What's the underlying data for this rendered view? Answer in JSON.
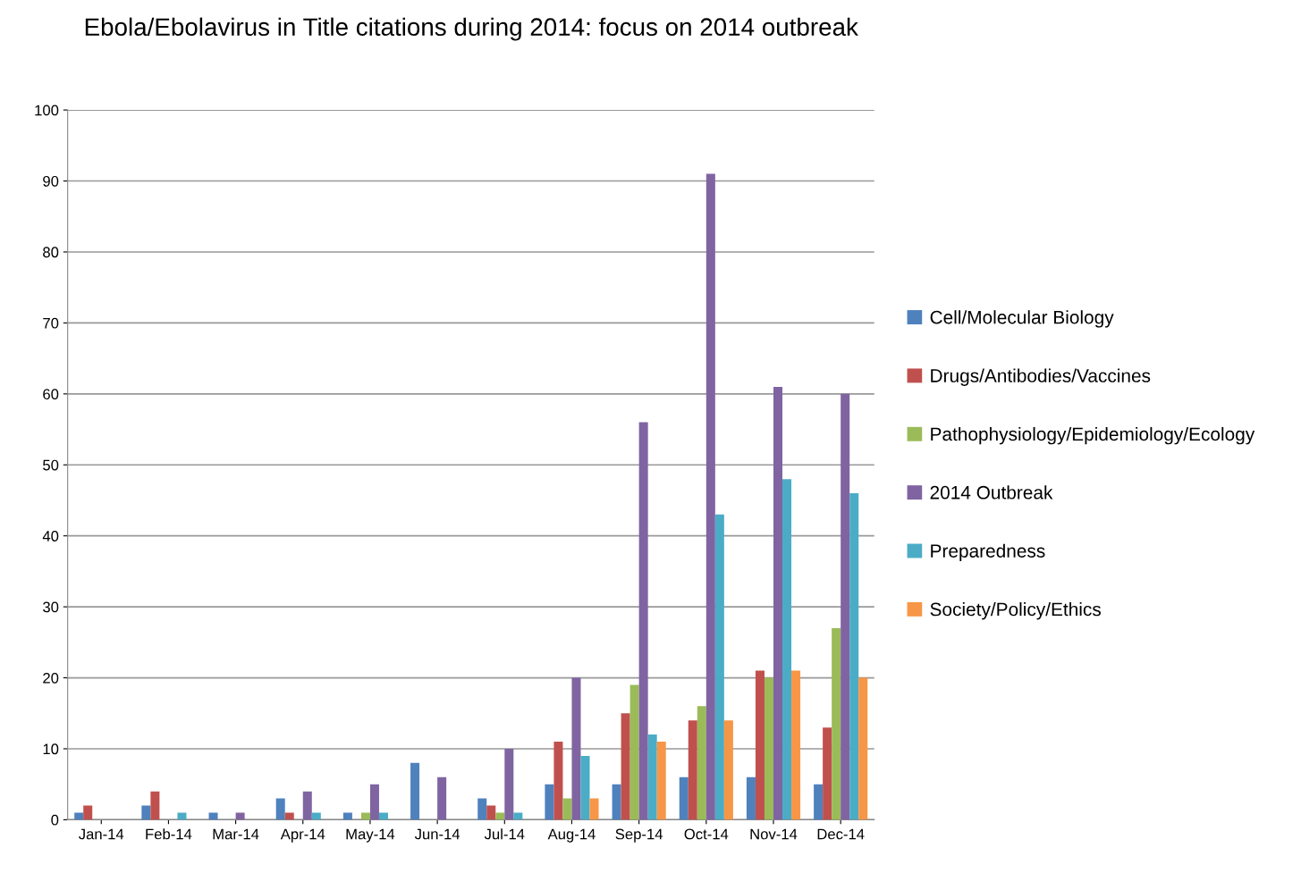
{
  "chart_data": {
    "type": "bar",
    "title": "Ebola/Ebolavirus in Title citations during 2014: focus on 2014 outbreak",
    "categories": [
      "Jan-14",
      "Feb-14",
      "Mar-14",
      "Apr-14",
      "May-14",
      "Jun-14",
      "Jul-14",
      "Aug-14",
      "Sep-14",
      "Oct-14",
      "Nov-14",
      "Dec-14"
    ],
    "series": [
      {
        "name": "Cell/Molecular Biology",
        "color": "#4f81bd",
        "values": [
          1,
          2,
          1,
          3,
          1,
          8,
          3,
          5,
          5,
          6,
          6,
          5
        ]
      },
      {
        "name": "Drugs/Antibodies/Vaccines",
        "color": "#c0504d",
        "values": [
          2,
          4,
          0,
          1,
          0,
          0,
          2,
          11,
          15,
          14,
          21,
          13
        ]
      },
      {
        "name": "Pathophysiology/Epidemiology/Ecology",
        "color": "#9bbb59",
        "values": [
          0,
          0,
          0,
          0,
          1,
          0,
          1,
          3,
          19,
          16,
          20,
          27
        ]
      },
      {
        "name": "2014 Outbreak",
        "color": "#8064a2",
        "values": [
          0,
          0,
          1,
          4,
          5,
          6,
          10,
          20,
          56,
          91,
          61,
          60
        ]
      },
      {
        "name": "Preparedness",
        "color": "#4bacc6",
        "values": [
          0,
          1,
          0,
          1,
          1,
          0,
          1,
          9,
          12,
          43,
          48,
          46
        ]
      },
      {
        "name": "Society/Policy/Ethics",
        "color": "#f79646",
        "values": [
          0,
          0,
          0,
          0,
          0,
          0,
          0,
          3,
          11,
          14,
          21,
          20
        ]
      }
    ],
    "ylim": [
      0,
      100
    ],
    "yticks": [
      0,
      10,
      20,
      30,
      40,
      50,
      60,
      70,
      80,
      90,
      100
    ],
    "grid": "y",
    "legend": "right"
  }
}
